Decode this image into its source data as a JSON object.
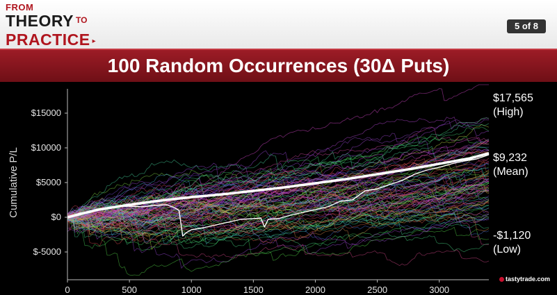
{
  "header": {
    "logo": {
      "line1": "FROM",
      "line2a": "THEORY",
      "line2b": "TO",
      "line3": "PRACTICE",
      "line3_mark": "▸"
    },
    "page_badge": "5 of 8"
  },
  "slide_title": "100 Random Occurrences (30Δ Puts)",
  "annotations": {
    "high_value": "$17,565",
    "high_label": "(High)",
    "mean_value": "$9,232",
    "mean_label": "(Mean)",
    "low_value": "-$1,120",
    "low_label": "(Low)"
  },
  "brand": "tastytrade.com",
  "colors": {
    "title_bar": "#8b1820",
    "background": "#000000",
    "mean_line": "#ffffff",
    "highlighted_path": "#ffffff"
  },
  "chart_data": {
    "type": "line",
    "ylabel": "Cumulative P/L",
    "xlabel": "",
    "xlim": [
      0,
      3400
    ],
    "ylim": [
      -8500,
      18000
    ],
    "x_ticks": [
      0,
      500,
      1000,
      1500,
      2000,
      2500,
      3000
    ],
    "x_tick_labels": [
      "0",
      "500",
      "1000",
      "1500",
      "2000",
      "2500",
      "3000"
    ],
    "y_ticks": [
      -5000,
      0,
      5000,
      10000,
      15000
    ],
    "y_tick_labels": [
      "$-5000",
      "$0",
      "$5000",
      "$10000",
      "$15000"
    ],
    "n_random_paths": 100,
    "random_paths_end_range": [
      -1120,
      17565
    ],
    "random_paths_end_mean": 9232,
    "series": [
      {
        "name": "Mean",
        "x": [
          0,
          250,
          500,
          750,
          1000,
          1250,
          1500,
          1750,
          2000,
          2250,
          2500,
          2750,
          3000,
          3250,
          3400
        ],
        "values": [
          0,
          1100,
          1800,
          2400,
          2900,
          3300,
          3800,
          4300,
          4900,
          5500,
          6200,
          6900,
          7700,
          8500,
          9232
        ]
      },
      {
        "x": [
          0,
          100,
          200,
          300,
          400,
          500,
          600,
          700,
          800,
          860,
          900,
          930,
          960,
          1000,
          1100,
          1200,
          1300,
          1400,
          1500,
          1560,
          1590,
          1620,
          1700,
          1800,
          1900,
          2000,
          2100,
          2200,
          2300,
          2400,
          2500,
          2600,
          2700,
          2800,
          2900,
          3000,
          3100,
          3200,
          3300,
          3400
        ],
        "values": [
          0,
          600,
          900,
          1300,
          1500,
          1600,
          1500,
          1700,
          1800,
          1400,
          1000,
          -2700,
          -2200,
          -1800,
          -1500,
          -1100,
          -700,
          -300,
          -200,
          -100,
          -1400,
          -300,
          -200,
          300,
          700,
          1100,
          1500,
          2300,
          2500,
          3800,
          4100,
          4700,
          5300,
          6200,
          6800,
          7200,
          7700,
          8100,
          8400,
          9000
        ]
      }
    ]
  }
}
